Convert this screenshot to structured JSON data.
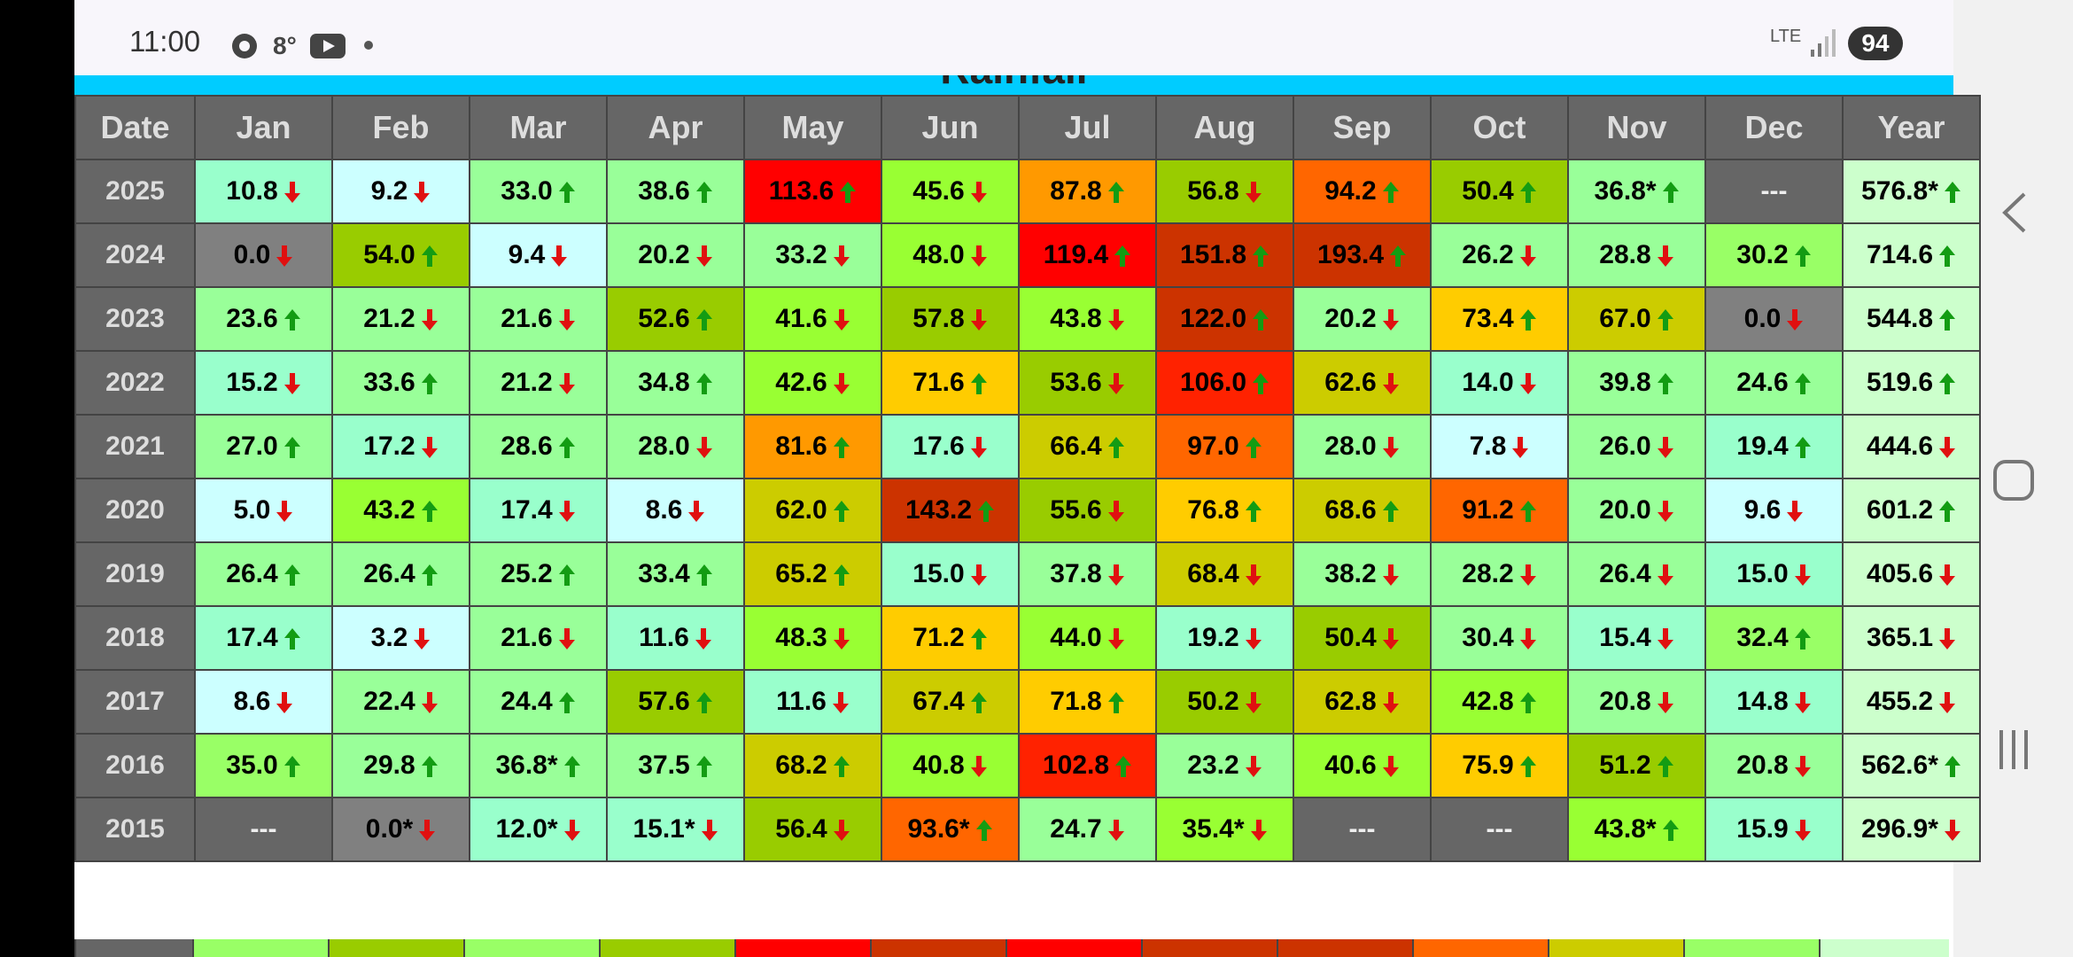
{
  "status_bar": {
    "time": "11:00",
    "temperature": "8°",
    "network": "LTE",
    "battery": "94"
  },
  "title": "Rainfall",
  "table": {
    "header": [
      "Date",
      "Jan",
      "Feb",
      "Mar",
      "Apr",
      "May",
      "Jun",
      "Jul",
      "Aug",
      "Sep",
      "Oct",
      "Nov",
      "Dec",
      "Year"
    ],
    "rows": [
      {
        "label": "2025",
        "cells": [
          {
            "t": "10.8",
            "a": "down",
            "bg": "#99ffcc"
          },
          {
            "t": "9.2",
            "a": "down",
            "bg": "#ccffff"
          },
          {
            "t": "33.0",
            "a": "up",
            "bg": "#99ff99"
          },
          {
            "t": "38.6",
            "a": "up",
            "bg": "#99ff99"
          },
          {
            "t": "113.6",
            "a": "up",
            "bg": "#ff0000"
          },
          {
            "t": "45.6",
            "a": "down",
            "bg": "#99ff33"
          },
          {
            "t": "87.8",
            "a": "up",
            "bg": "#ff9900"
          },
          {
            "t": "56.8",
            "a": "down",
            "bg": "#99cc00"
          },
          {
            "t": "94.2",
            "a": "up",
            "bg": "#ff6600"
          },
          {
            "t": "50.4",
            "a": "up",
            "bg": "#99cc00"
          },
          {
            "t": "36.8*",
            "a": "up",
            "bg": "#99ff99"
          },
          {
            "t": "---",
            "bg": "#666666"
          },
          {
            "t": "576.8*",
            "a": "up",
            "bg": "#ccffcc"
          }
        ]
      },
      {
        "label": "2024",
        "cells": [
          {
            "t": "0.0",
            "a": "down",
            "bg": "#808080"
          },
          {
            "t": "54.0",
            "a": "up",
            "bg": "#99cc00"
          },
          {
            "t": "9.4",
            "a": "down",
            "bg": "#ccffff"
          },
          {
            "t": "20.2",
            "a": "down",
            "bg": "#99ff99"
          },
          {
            "t": "33.2",
            "a": "down",
            "bg": "#99ff99"
          },
          {
            "t": "48.0",
            "a": "down",
            "bg": "#99ff33"
          },
          {
            "t": "119.4",
            "a": "up",
            "bg": "#ff0000"
          },
          {
            "t": "151.8",
            "a": "up",
            "bg": "#cc3300"
          },
          {
            "t": "193.4",
            "a": "up",
            "bg": "#cc3300"
          },
          {
            "t": "26.2",
            "a": "down",
            "bg": "#99ff99"
          },
          {
            "t": "28.8",
            "a": "down",
            "bg": "#99ff99"
          },
          {
            "t": "30.2",
            "a": "up",
            "bg": "#99ff66"
          },
          {
            "t": "714.6",
            "a": "up",
            "bg": "#ccffcc"
          }
        ]
      },
      {
        "label": "2023",
        "cells": [
          {
            "t": "23.6",
            "a": "up",
            "bg": "#99ff99"
          },
          {
            "t": "21.2",
            "a": "down",
            "bg": "#99ff99"
          },
          {
            "t": "21.6",
            "a": "down",
            "bg": "#99ff99"
          },
          {
            "t": "52.6",
            "a": "up",
            "bg": "#99cc00"
          },
          {
            "t": "41.6",
            "a": "down",
            "bg": "#99ff33"
          },
          {
            "t": "57.8",
            "a": "down",
            "bg": "#99cc00"
          },
          {
            "t": "43.8",
            "a": "down",
            "bg": "#99ff33"
          },
          {
            "t": "122.0",
            "a": "up",
            "bg": "#cc3300"
          },
          {
            "t": "20.2",
            "a": "down",
            "bg": "#99ff99"
          },
          {
            "t": "73.4",
            "a": "up",
            "bg": "#ffcc00"
          },
          {
            "t": "67.0",
            "a": "up",
            "bg": "#cccc00"
          },
          {
            "t": "0.0",
            "a": "down",
            "bg": "#808080"
          },
          {
            "t": "544.8",
            "a": "up",
            "bg": "#ccffcc"
          }
        ]
      },
      {
        "label": "2022",
        "cells": [
          {
            "t": "15.2",
            "a": "down",
            "bg": "#99ffcc"
          },
          {
            "t": "33.6",
            "a": "up",
            "bg": "#99ff99"
          },
          {
            "t": "21.2",
            "a": "down",
            "bg": "#99ff99"
          },
          {
            "t": "34.8",
            "a": "up",
            "bg": "#99ff99"
          },
          {
            "t": "42.6",
            "a": "down",
            "bg": "#99ff33"
          },
          {
            "t": "71.6",
            "a": "up",
            "bg": "#ffcc00"
          },
          {
            "t": "53.6",
            "a": "down",
            "bg": "#99cc00"
          },
          {
            "t": "106.0",
            "a": "up",
            "bg": "#ff2200"
          },
          {
            "t": "62.6",
            "a": "down",
            "bg": "#cccc00"
          },
          {
            "t": "14.0",
            "a": "down",
            "bg": "#99ffcc"
          },
          {
            "t": "39.8",
            "a": "up",
            "bg": "#99ff99"
          },
          {
            "t": "24.6",
            "a": "up",
            "bg": "#99ff99"
          },
          {
            "t": "519.6",
            "a": "up",
            "bg": "#ccffcc"
          }
        ]
      },
      {
        "label": "2021",
        "cells": [
          {
            "t": "27.0",
            "a": "up",
            "bg": "#99ff99"
          },
          {
            "t": "17.2",
            "a": "down",
            "bg": "#99ffcc"
          },
          {
            "t": "28.6",
            "a": "up",
            "bg": "#99ff99"
          },
          {
            "t": "28.0",
            "a": "down",
            "bg": "#99ff99"
          },
          {
            "t": "81.6",
            "a": "up",
            "bg": "#ff9900"
          },
          {
            "t": "17.6",
            "a": "down",
            "bg": "#99ffcc"
          },
          {
            "t": "66.4",
            "a": "up",
            "bg": "#cccc00"
          },
          {
            "t": "97.0",
            "a": "up",
            "bg": "#ff6600"
          },
          {
            "t": "28.0",
            "a": "down",
            "bg": "#99ff99"
          },
          {
            "t": "7.8",
            "a": "down",
            "bg": "#ccffff"
          },
          {
            "t": "26.0",
            "a": "down",
            "bg": "#99ff99"
          },
          {
            "t": "19.4",
            "a": "up",
            "bg": "#99ffcc"
          },
          {
            "t": "444.6",
            "a": "down",
            "bg": "#ccffcc"
          }
        ]
      },
      {
        "label": "2020",
        "cells": [
          {
            "t": "5.0",
            "a": "down",
            "bg": "#ccffff"
          },
          {
            "t": "43.2",
            "a": "up",
            "bg": "#99ff33"
          },
          {
            "t": "17.4",
            "a": "down",
            "bg": "#99ffcc"
          },
          {
            "t": "8.6",
            "a": "down",
            "bg": "#ccffff"
          },
          {
            "t": "62.0",
            "a": "up",
            "bg": "#cccc00"
          },
          {
            "t": "143.2",
            "a": "up",
            "bg": "#cc3300"
          },
          {
            "t": "55.6",
            "a": "down",
            "bg": "#99cc00"
          },
          {
            "t": "76.8",
            "a": "up",
            "bg": "#ffcc00"
          },
          {
            "t": "68.6",
            "a": "up",
            "bg": "#cccc00"
          },
          {
            "t": "91.2",
            "a": "up",
            "bg": "#ff6600"
          },
          {
            "t": "20.0",
            "a": "down",
            "bg": "#99ff99"
          },
          {
            "t": "9.6",
            "a": "down",
            "bg": "#ccffff"
          },
          {
            "t": "601.2",
            "a": "up",
            "bg": "#ccffcc"
          }
        ]
      },
      {
        "label": "2019",
        "cells": [
          {
            "t": "26.4",
            "a": "up",
            "bg": "#99ff99"
          },
          {
            "t": "26.4",
            "a": "up",
            "bg": "#99ff99"
          },
          {
            "t": "25.2",
            "a": "up",
            "bg": "#99ff99"
          },
          {
            "t": "33.4",
            "a": "up",
            "bg": "#99ff99"
          },
          {
            "t": "65.2",
            "a": "up",
            "bg": "#cccc00"
          },
          {
            "t": "15.0",
            "a": "down",
            "bg": "#99ffcc"
          },
          {
            "t": "37.8",
            "a": "down",
            "bg": "#99ff99"
          },
          {
            "t": "68.4",
            "a": "down",
            "bg": "#cccc00"
          },
          {
            "t": "38.2",
            "a": "down",
            "bg": "#99ff99"
          },
          {
            "t": "28.2",
            "a": "down",
            "bg": "#99ff99"
          },
          {
            "t": "26.4",
            "a": "down",
            "bg": "#99ff99"
          },
          {
            "t": "15.0",
            "a": "down",
            "bg": "#99ffcc"
          },
          {
            "t": "405.6",
            "a": "down",
            "bg": "#ccffcc"
          }
        ]
      },
      {
        "label": "2018",
        "cells": [
          {
            "t": "17.4",
            "a": "up",
            "bg": "#99ffcc"
          },
          {
            "t": "3.2",
            "a": "down",
            "bg": "#ccffff"
          },
          {
            "t": "21.6",
            "a": "down",
            "bg": "#99ff99"
          },
          {
            "t": "11.6",
            "a": "down",
            "bg": "#99ffcc"
          },
          {
            "t": "48.3",
            "a": "down",
            "bg": "#99ff33"
          },
          {
            "t": "71.2",
            "a": "up",
            "bg": "#ffcc00"
          },
          {
            "t": "44.0",
            "a": "down",
            "bg": "#99ff33"
          },
          {
            "t": "19.2",
            "a": "down",
            "bg": "#99ffcc"
          },
          {
            "t": "50.4",
            "a": "down",
            "bg": "#99cc00"
          },
          {
            "t": "30.4",
            "a": "down",
            "bg": "#99ff99"
          },
          {
            "t": "15.4",
            "a": "down",
            "bg": "#99ffcc"
          },
          {
            "t": "32.4",
            "a": "up",
            "bg": "#99ff66"
          },
          {
            "t": "365.1",
            "a": "down",
            "bg": "#ccffcc"
          }
        ]
      },
      {
        "label": "2017",
        "cells": [
          {
            "t": "8.6",
            "a": "down",
            "bg": "#ccffff"
          },
          {
            "t": "22.4",
            "a": "down",
            "bg": "#99ff99"
          },
          {
            "t": "24.4",
            "a": "up",
            "bg": "#99ff99"
          },
          {
            "t": "57.6",
            "a": "up",
            "bg": "#99cc00"
          },
          {
            "t": "11.6",
            "a": "down",
            "bg": "#99ffcc"
          },
          {
            "t": "67.4",
            "a": "up",
            "bg": "#cccc00"
          },
          {
            "t": "71.8",
            "a": "up",
            "bg": "#ffcc00"
          },
          {
            "t": "50.2",
            "a": "down",
            "bg": "#99cc00"
          },
          {
            "t": "62.8",
            "a": "down",
            "bg": "#cccc00"
          },
          {
            "t": "42.8",
            "a": "up",
            "bg": "#99ff33"
          },
          {
            "t": "20.8",
            "a": "down",
            "bg": "#99ff99"
          },
          {
            "t": "14.8",
            "a": "down",
            "bg": "#99ffcc"
          },
          {
            "t": "455.2",
            "a": "down",
            "bg": "#ccffcc"
          }
        ]
      },
      {
        "label": "2016",
        "cells": [
          {
            "t": "35.0",
            "a": "up",
            "bg": "#99ff66"
          },
          {
            "t": "29.8",
            "a": "up",
            "bg": "#99ff99"
          },
          {
            "t": "36.8*",
            "a": "up",
            "bg": "#99ff99"
          },
          {
            "t": "37.5",
            "a": "up",
            "bg": "#99ff99"
          },
          {
            "t": "68.2",
            "a": "up",
            "bg": "#cccc00"
          },
          {
            "t": "40.8",
            "a": "down",
            "bg": "#99ff33"
          },
          {
            "t": "102.8",
            "a": "up",
            "bg": "#ff2200"
          },
          {
            "t": "23.2",
            "a": "down",
            "bg": "#99ff99"
          },
          {
            "t": "40.6",
            "a": "down",
            "bg": "#99ff33"
          },
          {
            "t": "75.9",
            "a": "up",
            "bg": "#ffcc00"
          },
          {
            "t": "51.2",
            "a": "up",
            "bg": "#99cc00"
          },
          {
            "t": "20.8",
            "a": "down",
            "bg": "#99ff99"
          },
          {
            "t": "562.6*",
            "a": "up",
            "bg": "#ccffcc"
          }
        ]
      },
      {
        "label": "2015",
        "cells": [
          {
            "t": "---",
            "bg": "#666666"
          },
          {
            "t": "0.0*",
            "a": "down",
            "bg": "#808080"
          },
          {
            "t": "12.0*",
            "a": "down",
            "bg": "#99ffcc"
          },
          {
            "t": "15.1*",
            "a": "down",
            "bg": "#99ffcc"
          },
          {
            "t": "56.4",
            "a": "down",
            "bg": "#99cc00"
          },
          {
            "t": "93.6*",
            "a": "up",
            "bg": "#ff6600"
          },
          {
            "t": "24.7",
            "a": "down",
            "bg": "#99ff99"
          },
          {
            "t": "35.4*",
            "a": "down",
            "bg": "#99ff33"
          },
          {
            "t": "---",
            "bg": "#666666"
          },
          {
            "t": "---",
            "bg": "#666666"
          },
          {
            "t": "43.8*",
            "a": "up",
            "bg": "#99ff33"
          },
          {
            "t": "15.9",
            "a": "down",
            "bg": "#99ffcc"
          },
          {
            "t": "296.9*",
            "a": "down",
            "bg": "#ccffcc"
          }
        ]
      }
    ]
  }
}
